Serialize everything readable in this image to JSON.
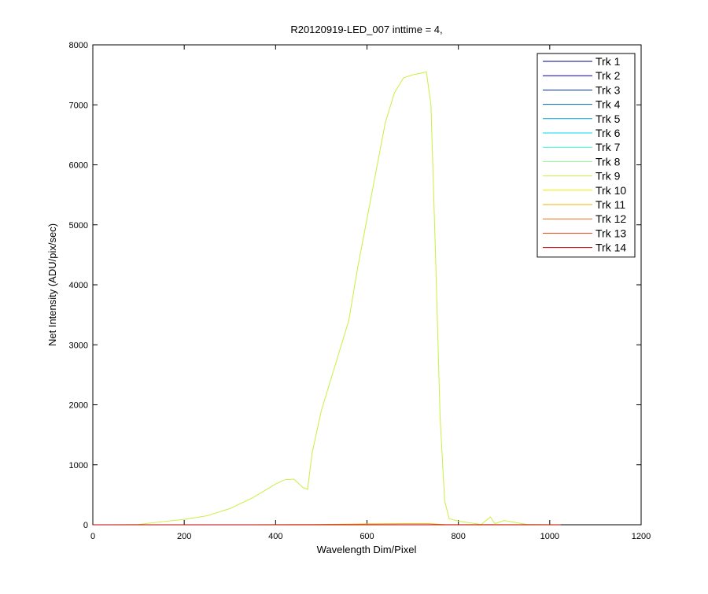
{
  "chart_data": {
    "type": "line",
    "title": "R20120919-LED_007 inttime = 4,",
    "xlabel": "Wavelength Dim/Pixel",
    "ylabel": "Net Intensity (ADU/pix/sec)",
    "xlim": [
      0,
      1200
    ],
    "xticks": [
      0,
      200,
      400,
      600,
      800,
      1000,
      1200
    ],
    "ylim": [
      0,
      8000
    ],
    "yticks": [
      0,
      1000,
      2000,
      3000,
      4000,
      5000,
      6000,
      7000,
      8000
    ],
    "legend": "upper right",
    "x": [
      0,
      50,
      100,
      150,
      200,
      250,
      300,
      350,
      400,
      420,
      440,
      460,
      470,
      480,
      500,
      520,
      540,
      560,
      580,
      600,
      620,
      640,
      660,
      680,
      700,
      720,
      730,
      740,
      750,
      760,
      770,
      780,
      800,
      850,
      870,
      880,
      900,
      950,
      1000,
      1023
    ],
    "series": [
      {
        "name": "Trk 1",
        "color": "#00008f",
        "values": [
          0,
          0,
          0,
          0,
          0,
          0,
          0,
          0,
          0,
          0,
          0,
          0,
          0,
          0,
          0,
          0,
          0,
          0,
          0,
          0,
          0,
          0,
          0,
          0,
          0,
          0,
          0,
          0,
          0,
          0,
          0,
          0,
          0,
          0,
          0,
          0,
          0,
          0,
          0,
          0
        ]
      },
      {
        "name": "Trk 2",
        "color": "#0000c0",
        "values": [
          0,
          0,
          0,
          0,
          0,
          0,
          0,
          0,
          0,
          0,
          0,
          0,
          0,
          0,
          0,
          0,
          0,
          0,
          0,
          0,
          0,
          0,
          0,
          0,
          0,
          0,
          0,
          0,
          0,
          0,
          0,
          0,
          0,
          0,
          0,
          0,
          0,
          0,
          0,
          0
        ]
      },
      {
        "name": "Trk 3",
        "color": "#0030a0",
        "values": [
          0,
          0,
          0,
          0,
          0,
          0,
          0,
          0,
          0,
          0,
          0,
          0,
          0,
          0,
          0,
          0,
          0,
          0,
          0,
          0,
          0,
          0,
          0,
          0,
          0,
          0,
          0,
          0,
          0,
          0,
          0,
          0,
          0,
          0,
          0,
          0,
          0,
          0,
          0,
          0
        ]
      },
      {
        "name": "Trk 4",
        "color": "#006aa0",
        "values": [
          0,
          0,
          0,
          0,
          0,
          0,
          0,
          0,
          0,
          0,
          0,
          0,
          0,
          0,
          0,
          0,
          0,
          0,
          0,
          0,
          0,
          0,
          0,
          0,
          0,
          0,
          0,
          0,
          0,
          0,
          0,
          0,
          0,
          0,
          0,
          0,
          0,
          0,
          0,
          0
        ]
      },
      {
        "name": "Trk 5",
        "color": "#00a0c0",
        "values": [
          0,
          0,
          0,
          0,
          0,
          0,
          0,
          0,
          0,
          0,
          0,
          0,
          0,
          0,
          0,
          0,
          0,
          0,
          0,
          0,
          0,
          0,
          0,
          0,
          0,
          0,
          0,
          0,
          0,
          0,
          0,
          0,
          0,
          0,
          0,
          0,
          0,
          0,
          0,
          0
        ]
      },
      {
        "name": "Trk 6",
        "color": "#00d8e8",
        "values": [
          0,
          0,
          0,
          0,
          0,
          0,
          0,
          0,
          0,
          0,
          0,
          0,
          0,
          0,
          0,
          0,
          0,
          0,
          0,
          0,
          0,
          0,
          0,
          0,
          0,
          0,
          0,
          0,
          0,
          0,
          0,
          0,
          0,
          0,
          0,
          0,
          0,
          0,
          0,
          0
        ]
      },
      {
        "name": "Trk 7",
        "color": "#40f0e0",
        "values": [
          0,
          0,
          0,
          0,
          0,
          0,
          0,
          0,
          0,
          0,
          0,
          0,
          0,
          0,
          0,
          0,
          0,
          0,
          0,
          0,
          0,
          0,
          0,
          0,
          0,
          0,
          0,
          0,
          0,
          0,
          0,
          0,
          0,
          0,
          0,
          0,
          0,
          0,
          0,
          0
        ]
      },
      {
        "name": "Trk 8",
        "color": "#90f090",
        "values": [
          0,
          0,
          0,
          0,
          0,
          0,
          0,
          0,
          0,
          0,
          0,
          0,
          0,
          0,
          0,
          0,
          0,
          0,
          0,
          0,
          0,
          0,
          0,
          0,
          0,
          0,
          0,
          0,
          0,
          0,
          0,
          0,
          0,
          0,
          0,
          0,
          0,
          0,
          0,
          0
        ]
      },
      {
        "name": "Trk 9",
        "color": "#c8f040",
        "values": [
          0,
          0,
          5,
          50,
          90,
          150,
          270,
          450,
          680,
          750,
          760,
          620,
          590,
          1200,
          1900,
          2400,
          2900,
          3400,
          4300,
          5100,
          5900,
          6700,
          7200,
          7450,
          7500,
          7530,
          7550,
          7000,
          4500,
          1800,
          400,
          100,
          60,
          5,
          130,
          20,
          70,
          5,
          2,
          0
        ]
      },
      {
        "name": "Trk 10",
        "color": "#e8f000",
        "values": [
          0,
          0,
          0,
          0,
          0,
          0,
          0,
          0,
          0,
          0,
          0,
          0,
          0,
          0,
          0,
          0,
          0,
          0,
          0,
          0,
          0,
          0,
          0,
          0,
          0,
          0,
          0,
          0,
          0,
          0,
          0,
          0,
          0,
          0,
          0,
          0,
          0,
          0,
          0,
          0
        ]
      },
      {
        "name": "Trk 11",
        "color": "#f0b000",
        "values": [
          0,
          0,
          0,
          0,
          0,
          0,
          0,
          0,
          2,
          2,
          3,
          3,
          3,
          4,
          5,
          6,
          8,
          10,
          12,
          14,
          15,
          16,
          17,
          18,
          18,
          18,
          18,
          17,
          12,
          6,
          3,
          2,
          2,
          1,
          3,
          1,
          2,
          1,
          0,
          0
        ]
      },
      {
        "name": "Trk 12",
        "color": "#f07020",
        "values": [
          0,
          0,
          0,
          0,
          0,
          0,
          0,
          0,
          0,
          0,
          0,
          0,
          0,
          0,
          0,
          0,
          0,
          0,
          0,
          0,
          0,
          0,
          0,
          0,
          0,
          0,
          0,
          0,
          0,
          0,
          0,
          0,
          0,
          0,
          0,
          0,
          0,
          0,
          0,
          0
        ]
      },
      {
        "name": "Trk 13",
        "color": "#e84010",
        "values": [
          0,
          0,
          0,
          0,
          0,
          0,
          0,
          0,
          0,
          0,
          0,
          0,
          0,
          0,
          0,
          0,
          0,
          0,
          0,
          0,
          0,
          0,
          0,
          0,
          0,
          0,
          0,
          0,
          0,
          0,
          0,
          0,
          0,
          0,
          0,
          0,
          0,
          0,
          0,
          0
        ]
      },
      {
        "name": "Trk 14",
        "color": "#c00000",
        "values": [
          0,
          0,
          0,
          0,
          0,
          0,
          0,
          0,
          0,
          0,
          0,
          0,
          0,
          0,
          0,
          0,
          0,
          0,
          0,
          0,
          0,
          0,
          0,
          0,
          0,
          0,
          0,
          0,
          0,
          0,
          0,
          0,
          0,
          0,
          0,
          0,
          0,
          0,
          0,
          0
        ]
      }
    ]
  }
}
